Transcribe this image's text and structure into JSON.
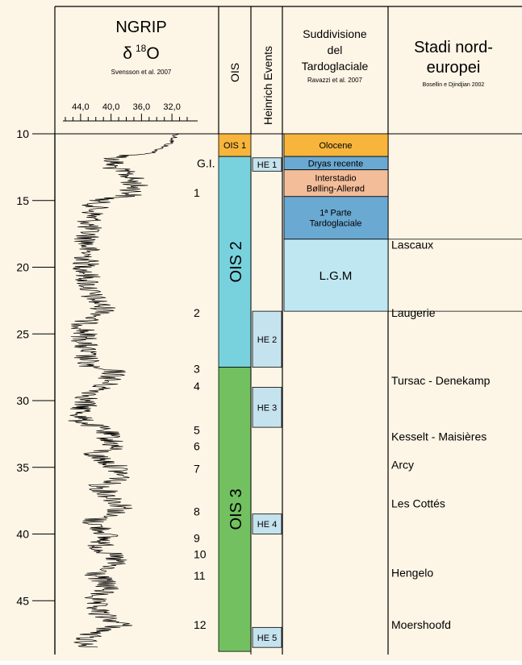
{
  "colors": {
    "background": "#fdf5e6",
    "ois1": "#f7b53c",
    "ois2": "#78d2de",
    "ois3": "#72c060",
    "he": "#c5e3ee",
    "olocene": "#f7b53c",
    "dryas": "#6aa9d2",
    "interstadio": "#f4bd9a",
    "tardoglaciale": "#6aa9d2",
    "lgm": "#bfe7f1"
  },
  "headers": {
    "ngrip_title": "NGRIP",
    "ngrip_delta": "δ",
    "ngrip_sup": "18",
    "ngrip_o": "O",
    "ngrip_credit": "Svensson et al. 2007",
    "ois": "OIS",
    "heinrich": "Heinrich Events",
    "sudd_line1": "Suddivisione",
    "sudd_line2": "del",
    "sudd_line3": "Tardoglaciale",
    "sudd_credit": "Ravazzi et al. 2007",
    "stadi_line1": "Stadi nord-",
    "stadi_line2": "europei",
    "stadi_credit": "Bosellin e Djindjian 2002"
  },
  "axis": {
    "x_ticks": [
      "44,0",
      "40,0",
      "36,0",
      "32,0"
    ],
    "y_ticks": [
      "10",
      "15",
      "20",
      "25",
      "30",
      "35",
      "40",
      "45"
    ],
    "y_range": [
      10,
      48.5
    ]
  },
  "gi": {
    "header": "G.I.",
    "items": [
      {
        "label": "1",
        "age": 14.4
      },
      {
        "label": "2",
        "age": 23.4
      },
      {
        "label": "3",
        "age": 27.6
      },
      {
        "label": "4",
        "age": 28.9
      },
      {
        "label": "5",
        "age": 32.2
      },
      {
        "label": "6",
        "age": 33.4
      },
      {
        "label": "7",
        "age": 35.1
      },
      {
        "label": "8",
        "age": 38.3
      },
      {
        "label": "9",
        "age": 40.3
      },
      {
        "label": "10",
        "age": 41.5
      },
      {
        "label": "11",
        "age": 43.1
      },
      {
        "label": "12",
        "age": 46.8
      }
    ]
  },
  "ois": [
    {
      "label": "OIS 1",
      "start": 10,
      "end": 11.7,
      "color": "#f7b53c"
    },
    {
      "label": "OIS 2",
      "start": 11.7,
      "end": 27.5,
      "color": "#78d2de"
    },
    {
      "label": "OIS 3",
      "start": 27.5,
      "end": 48.8,
      "color": "#72c060"
    }
  ],
  "heinrich": [
    {
      "label": "HE 1",
      "start": 11.8,
      "end": 12.8
    },
    {
      "label": "HE 2",
      "start": 23.3,
      "end": 27.5
    },
    {
      "label": "HE 3",
      "start": 29.0,
      "end": 32.0
    },
    {
      "label": "HE 4",
      "start": 38.5,
      "end": 40.0
    },
    {
      "label": "HE 5",
      "start": 47.0,
      "end": 48.5
    }
  ],
  "tardoglaciale": [
    {
      "lines": [
        "Olocene"
      ],
      "start": 10.0,
      "end": 11.7,
      "color": "#f7b53c"
    },
    {
      "lines": [
        "Dryas recente"
      ],
      "start": 11.7,
      "end": 12.7,
      "color": "#6aa9d2"
    },
    {
      "lines": [
        "Interstadio",
        "Bølling-Allerød"
      ],
      "start": 12.7,
      "end": 14.7,
      "color": "#f4bd9a"
    },
    {
      "lines": [
        "1ª Parte",
        "Tardoglaciale"
      ],
      "start": 14.7,
      "end": 17.9,
      "color": "#6aa9d2"
    },
    {
      "lines": [
        "L.G.M"
      ],
      "start": 17.9,
      "end": 23.3,
      "color": "#bfe7f1"
    }
  ],
  "stadi": [
    {
      "label": "Lascaux",
      "age": 18.3
    },
    {
      "label": "Laugerie",
      "age": 23.4
    },
    {
      "label": "Tursac - Denekamp",
      "age": 28.5
    },
    {
      "label": "Kesselt - Maisières",
      "age": 32.7
    },
    {
      "label": "Arcy",
      "age": 34.8
    },
    {
      "label": "Les Cottés",
      "age": 37.7
    },
    {
      "label": "Hengelo",
      "age": 42.9
    },
    {
      "label": "Moershoofd",
      "age": 46.8
    }
  ]
}
